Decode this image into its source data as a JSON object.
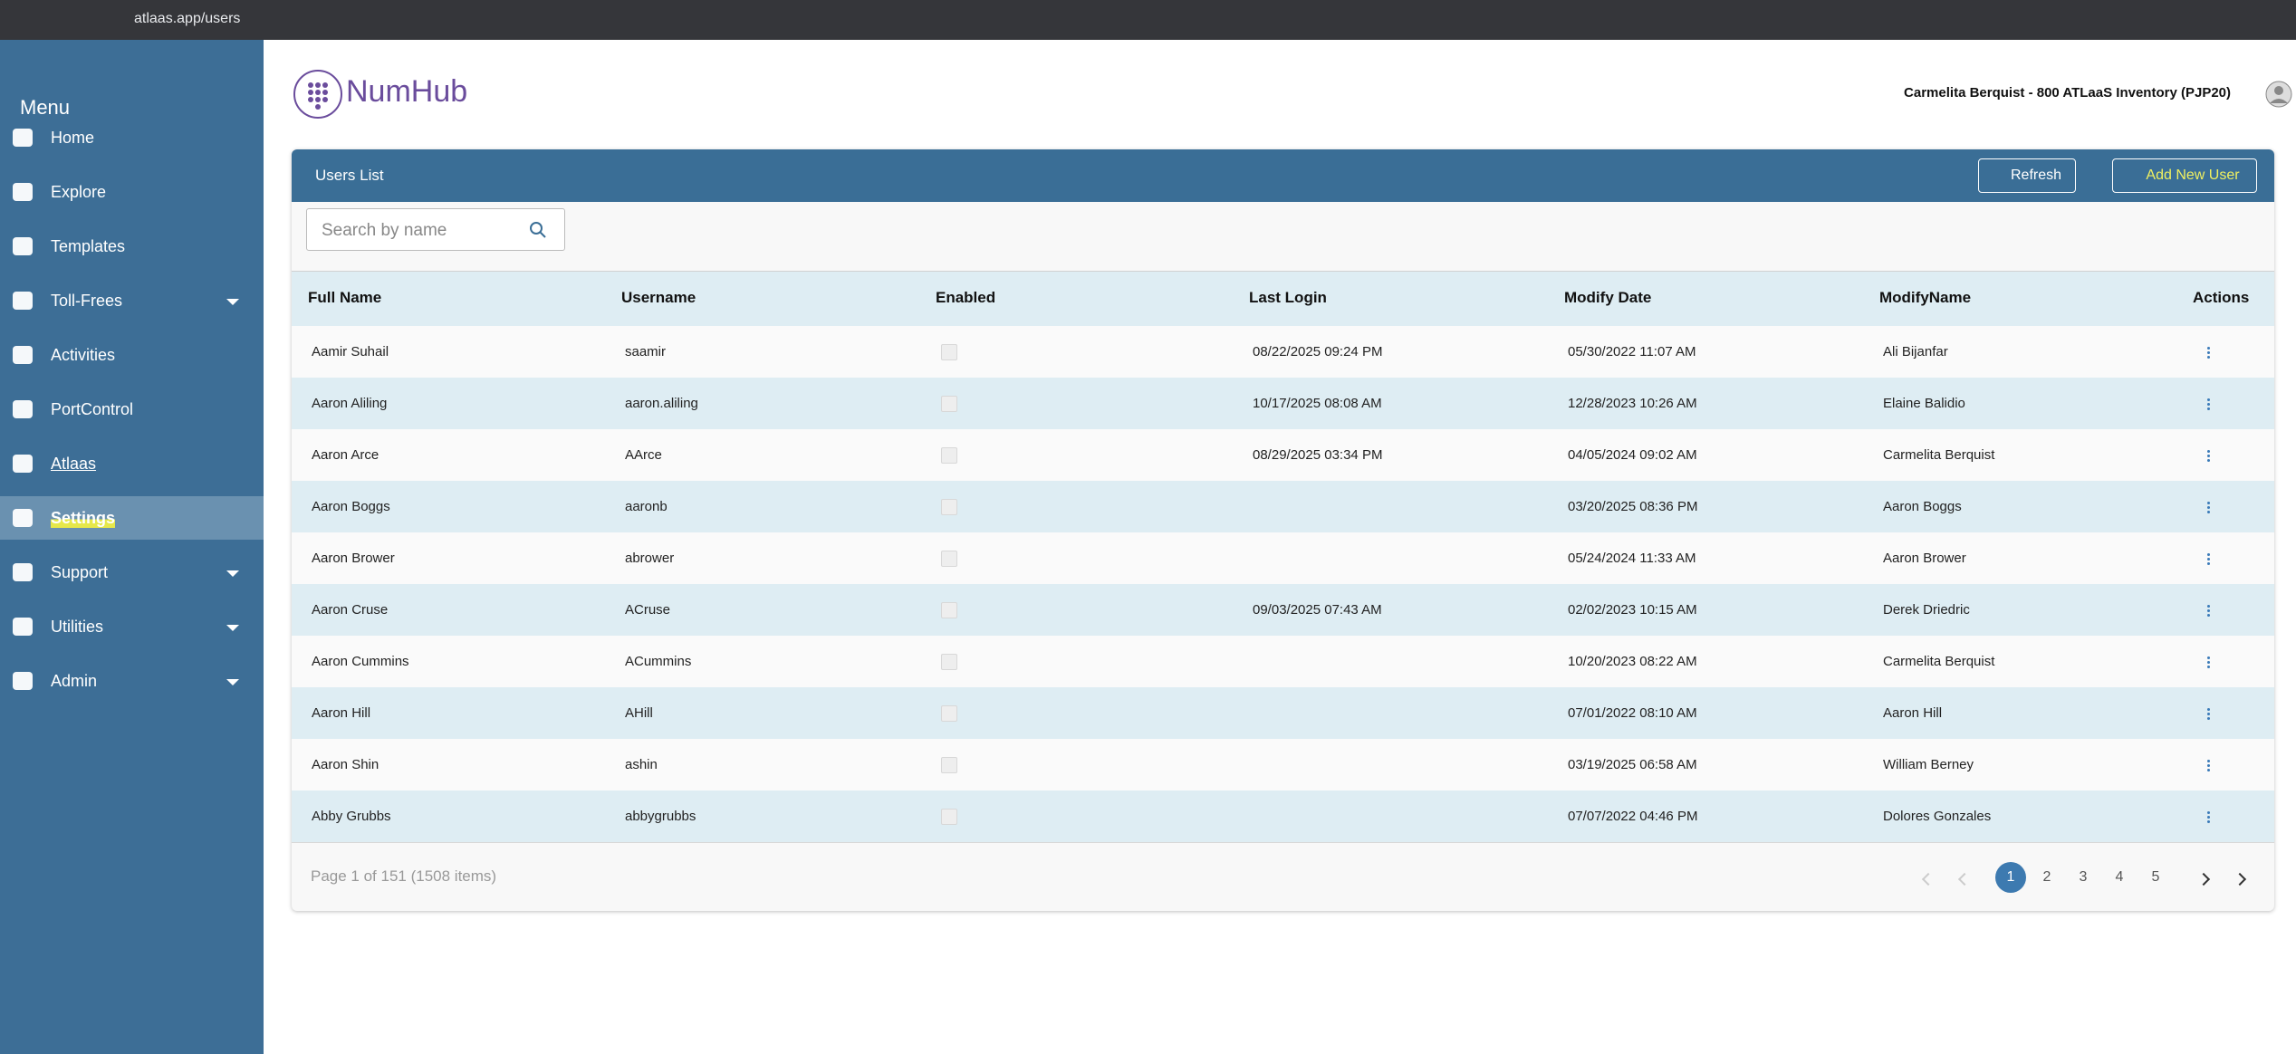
{
  "browser": {
    "url": "atlaas.app/users"
  },
  "sidebar": {
    "title": "Menu",
    "items": [
      {
        "label": "Home"
      },
      {
        "label": "Explore"
      },
      {
        "label": "Templates"
      },
      {
        "label": "Toll-Frees",
        "expandable": true
      },
      {
        "label": "Activities"
      },
      {
        "label": "PortControl"
      },
      {
        "label": "Atlaas"
      },
      {
        "label": "Settings",
        "selected": true
      },
      {
        "label": "Support",
        "expandable": true
      },
      {
        "label": "Utilities",
        "expandable": true
      },
      {
        "label": "Admin",
        "expandable": true
      }
    ]
  },
  "header": {
    "logo": "NumHub",
    "user": "Carmelita Berquist - 800 ATLaaS Inventory (PJP20)"
  },
  "card": {
    "title": "Users List",
    "refresh": "Refresh",
    "add": "Add New User",
    "search_placeholder": "Search by name"
  },
  "table": {
    "columns": [
      "Full Name",
      "Username",
      "Enabled",
      "Last Login",
      "Modify Date",
      "ModifyName",
      "Actions"
    ],
    "rows": [
      [
        "Aamir Suhail",
        "saamir",
        "08/22/2025 09:24 PM",
        "05/30/2022 11:07 AM",
        "Ali Bijanfar"
      ],
      [
        "Aaron Aliling",
        "aaron.aliling",
        "10/17/2025 08:08 AM",
        "12/28/2023 10:26 AM",
        "Elaine Balidio"
      ],
      [
        "Aaron Arce",
        "AArce",
        "08/29/2025 03:34 PM",
        "04/05/2024 09:02 AM",
        "Carmelita Berquist"
      ],
      [
        "Aaron Boggs",
        "aaronb",
        "",
        "03/20/2025 08:36 PM",
        "Aaron Boggs"
      ],
      [
        "Aaron Brower",
        "abrower",
        "",
        "05/24/2024 11:33 AM",
        "Aaron Brower"
      ],
      [
        "Aaron Cruse",
        "ACruse",
        "09/03/2025 07:43 AM",
        "02/02/2023 10:15 AM",
        "Derek Driedric"
      ],
      [
        "Aaron Cummins",
        "ACummins",
        "",
        "10/20/2023 08:22 AM",
        "Carmelita Berquist"
      ],
      [
        "Aaron Hill",
        "AHill",
        "",
        "07/01/2022 08:10 AM",
        "Aaron Hill"
      ],
      [
        "Aaron Shin",
        "ashin",
        "",
        "03/19/2025 06:58 AM",
        "William Berney"
      ],
      [
        "Abby Grubbs",
        "abbygrubbs",
        "",
        "07/07/2022 04:46 PM",
        "Dolores Gonzales"
      ]
    ]
  },
  "pagination": {
    "info": "Page 1 of 151 (1508 items)",
    "pages": [
      "1",
      "2",
      "3",
      "4",
      "5"
    ]
  }
}
